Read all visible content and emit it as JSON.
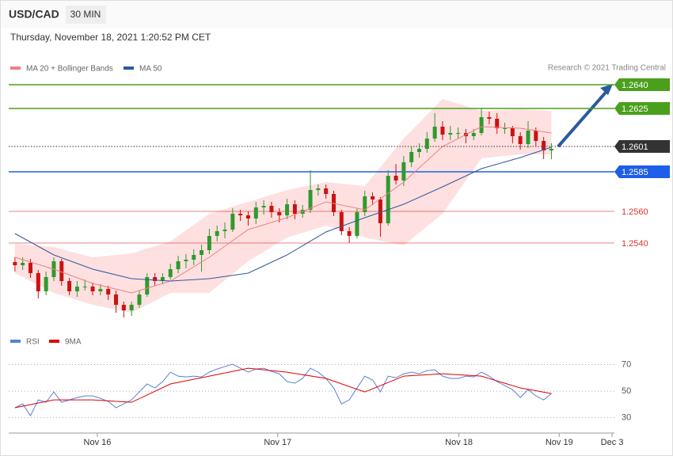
{
  "chart_data": {
    "type": "candlestick",
    "title": "USD/CAD",
    "timeframe": "30 MIN",
    "subtitle": "Thursday, November 18, 2021 1:20:52 PM CET",
    "credit": "Research © 2021 Trading Central",
    "up_color": "#2e9a2e",
    "down_color": "#cc1111",
    "xlim": [
      -0.8,
      77.1
    ],
    "xticks": [
      {
        "value": 10.6,
        "label": "Nov 16"
      },
      {
        "value": 33.8,
        "label": "Nov 17"
      },
      {
        "value": 57.1,
        "label": "Nov 18"
      },
      {
        "value": 70,
        "label": "Nov 19"
      },
      {
        "value": 76.8,
        "label": "Dec 3"
      }
    ],
    "ylim": [
      1.2486,
      1.2646
    ],
    "ohlc": [
      [
        1.2528,
        1.2531,
        1.2522,
        1.2526
      ],
      [
        1.2526,
        1.2531,
        1.2523,
        1.25275
      ],
      [
        1.25275,
        1.253,
        1.2518,
        1.2521
      ],
      [
        1.2521,
        1.2523,
        1.2505,
        1.25095
      ],
      [
        1.25095,
        1.2522,
        1.2507,
        1.25185
      ],
      [
        1.25185,
        1.2531,
        1.2516,
        1.25285
      ],
      [
        1.25285,
        1.253,
        1.2513,
        1.2516
      ],
      [
        1.2516,
        1.2518,
        1.2507,
        1.25095
      ],
      [
        1.25095,
        1.2516,
        1.2506,
        1.25125
      ],
      [
        1.25125,
        1.2517,
        1.251,
        1.25125
      ],
      [
        1.25125,
        1.2515,
        1.2507,
        1.25095
      ],
      [
        1.25095,
        1.2514,
        1.2507,
        1.2511
      ],
      [
        1.2511,
        1.2513,
        1.2504,
        1.25075
      ],
      [
        1.25075,
        1.251,
        1.2496,
        1.2501
      ],
      [
        1.2501,
        1.2503,
        1.2493,
        1.24975
      ],
      [
        1.24975,
        1.2503,
        1.2494,
        1.2501
      ],
      [
        1.2501,
        1.251,
        1.2499,
        1.25075
      ],
      [
        1.25075,
        1.2521,
        1.2506,
        1.25185
      ],
      [
        1.25185,
        1.2521,
        1.2513,
        1.2516
      ],
      [
        1.2516,
        1.2521,
        1.2514,
        1.25185
      ],
      [
        1.25185,
        1.2527,
        1.2517,
        1.25235
      ],
      [
        1.25235,
        1.2532,
        1.2521,
        1.25285
      ],
      [
        1.25285,
        1.2533,
        1.2524,
        1.25295
      ],
      [
        1.25295,
        1.2536,
        1.2526,
        1.25325
      ],
      [
        1.25325,
        1.2539,
        1.2522,
        1.25355
      ],
      [
        1.25355,
        1.2549,
        1.2533,
        1.25445
      ],
      [
        1.25445,
        1.2551,
        1.2541,
        1.25475
      ],
      [
        1.25475,
        1.2553,
        1.2543,
        1.25485
      ],
      [
        1.25485,
        1.2562,
        1.2547,
        1.25585
      ],
      [
        1.25585,
        1.2561,
        1.2554,
        1.25575
      ],
      [
        1.25575,
        1.256,
        1.2551,
        1.25555
      ],
      [
        1.25555,
        1.2566,
        1.2552,
        1.25625
      ],
      [
        1.25625,
        1.2567,
        1.2558,
        1.25635
      ],
      [
        1.25635,
        1.2566,
        1.2556,
        1.25595
      ],
      [
        1.25595,
        1.2562,
        1.2553,
        1.25575
      ],
      [
        1.25575,
        1.2568,
        1.2555,
        1.25645
      ],
      [
        1.25645,
        1.2567,
        1.2555,
        1.25585
      ],
      [
        1.25585,
        1.2564,
        1.2556,
        1.2561
      ],
      [
        1.2561,
        1.2586,
        1.2559,
        1.25735
      ],
      [
        1.25735,
        1.2577,
        1.257,
        1.25745
      ],
      [
        1.25745,
        1.2577,
        1.2568,
        1.2571
      ],
      [
        1.2571,
        1.2573,
        1.2557,
        1.25595
      ],
      [
        1.25595,
        1.2561,
        1.2545,
        1.25475
      ],
      [
        1.25475,
        1.255,
        1.254,
        1.25445
      ],
      [
        1.25445,
        1.2562,
        1.2543,
        1.25595
      ],
      [
        1.25595,
        1.2573,
        1.2557,
        1.25695
      ],
      [
        1.25695,
        1.2572,
        1.2564,
        1.25675
      ],
      [
        1.25675,
        1.2569,
        1.2544,
        1.25525
      ],
      [
        1.25525,
        1.2586,
        1.2551,
        1.25825
      ],
      [
        1.25825,
        1.259,
        1.2577,
        1.25795
      ],
      [
        1.25795,
        1.2595,
        1.2576,
        1.2591
      ],
      [
        1.2591,
        1.2601,
        1.2588,
        1.25975
      ],
      [
        1.25975,
        1.2603,
        1.2594,
        1.25995
      ],
      [
        1.25995,
        1.261,
        1.2597,
        1.2606
      ],
      [
        1.2606,
        1.2622,
        1.2604,
        1.26135
      ],
      [
        1.26135,
        1.2617,
        1.2605,
        1.26085
      ],
      [
        1.26085,
        1.2614,
        1.2605,
        1.26095
      ],
      [
        1.26095,
        1.2613,
        1.2606,
        1.26095
      ],
      [
        1.26095,
        1.2612,
        1.2603,
        1.26075
      ],
      [
        1.26075,
        1.2612,
        1.2605,
        1.26095
      ],
      [
        1.26095,
        1.2625,
        1.2608,
        1.26195
      ],
      [
        1.26195,
        1.2623,
        1.2615,
        1.26185
      ],
      [
        1.26185,
        1.2622,
        1.2609,
        1.26125
      ],
      [
        1.26125,
        1.2616,
        1.2609,
        1.26125
      ],
      [
        1.26125,
        1.2614,
        1.2603,
        1.26075
      ],
      [
        1.26075,
        1.261,
        1.2599,
        1.26025
      ],
      [
        1.26025,
        1.2617,
        1.26,
        1.2611
      ],
      [
        1.2611,
        1.2613,
        1.2601,
        1.26045
      ],
      [
        1.26045,
        1.2607,
        1.2593,
        1.25985
      ],
      [
        1.25985,
        1.2603,
        1.2593,
        1.25995
      ]
    ],
    "overlay_x": [
      0,
      5,
      10,
      15,
      20,
      25,
      30,
      35,
      40,
      45,
      50,
      55,
      60,
      65,
      69
    ],
    "series": [
      {
        "name": "MA 20 + Bollinger Bands",
        "color": "#f08080",
        "values": [
          1.2531,
          1.25235,
          1.25145,
          1.25085,
          1.2516,
          1.2531,
          1.25485,
          1.2556,
          1.2566,
          1.2561,
          1.25785,
          1.2601,
          1.26135,
          1.26125,
          1.26095
        ],
        "upper": [
          1.25395,
          1.25375,
          1.2531,
          1.25335,
          1.2541,
          1.25585,
          1.2566,
          1.25735,
          1.25785,
          1.2576,
          1.2606,
          1.2631,
          1.26235,
          1.26245,
          1.26235
        ],
        "lower": [
          1.2521,
          1.25085,
          1.2501,
          1.2496,
          1.25085,
          1.25085,
          1.25285,
          1.25435,
          1.2551,
          1.25435,
          1.25385,
          1.25585,
          1.25935,
          1.2596,
          1.2596
        ]
      },
      {
        "name": "MA 50",
        "color": "#2c5aa0",
        "values": [
          1.2546,
          1.25325,
          1.25235,
          1.25175,
          1.2516,
          1.25175,
          1.2521,
          1.25325,
          1.2547,
          1.2556,
          1.25645,
          1.25755,
          1.2587,
          1.2594,
          1.26005
        ]
      }
    ],
    "levels": [
      {
        "value": 1.264,
        "label": "1.2640",
        "color": "#4aa01c",
        "box": true
      },
      {
        "value": 1.2625,
        "label": "1.2625",
        "color": "#4aa01c",
        "box": true
      },
      {
        "value": 1.2601,
        "label": "1.2601",
        "color": "#333333",
        "box": true,
        "dotted": true
      },
      {
        "value": 1.2585,
        "label": "1.2585",
        "color": "#1f5ee8",
        "box": true
      },
      {
        "value": 1.256,
        "label": "1.2560",
        "color": "#e03030",
        "box": false
      },
      {
        "value": 1.254,
        "label": "1.2540",
        "color": "#e03030",
        "box": false
      }
    ],
    "rsi": {
      "ylim": [
        22,
        76
      ],
      "yticks": [
        70,
        50,
        30
      ],
      "series": [
        {
          "name": "RSI",
          "color": "#5b7fd6",
          "values": [
            37.5,
            40.4,
            31.5,
            43.4,
            41.6,
            49.4,
            41.6,
            43.4,
            45.2,
            46.4,
            46.4,
            44.6,
            42.2,
            37.5,
            40.4,
            43.4,
            49.4,
            55.4,
            52.4,
            57.2,
            64.3,
            61.3,
            60.7,
            61.3,
            60.7,
            64.3,
            66.7,
            68.5,
            70.3,
            67.3,
            64.3,
            66.7,
            67.3,
            64.9,
            63.1,
            57.2,
            56,
            59.6,
            67.3,
            64.3,
            59.6,
            52.4,
            40.4,
            43.4,
            52.4,
            61.3,
            58.4,
            49.4,
            61.3,
            60.1,
            63.1,
            64.3,
            63.1,
            65.5,
            66.1,
            61.3,
            59.6,
            59.6,
            61.3,
            60.7,
            64.3,
            61.3,
            57.2,
            54.2,
            51.2,
            45.2,
            51.2,
            46.4,
            43.4,
            48.2
          ]
        },
        {
          "name": "9MA",
          "color": "#e00000",
          "x": [
            0,
            5,
            10,
            15,
            20,
            25,
            30,
            35,
            40,
            45,
            50,
            55,
            60,
            65,
            69
          ],
          "values": [
            37.5,
            43.4,
            43.4,
            41.6,
            55.4,
            61.3,
            67.3,
            64.3,
            59.6,
            49.4,
            61.3,
            63.1,
            61.3,
            52.4,
            48.2
          ]
        }
      ]
    }
  }
}
